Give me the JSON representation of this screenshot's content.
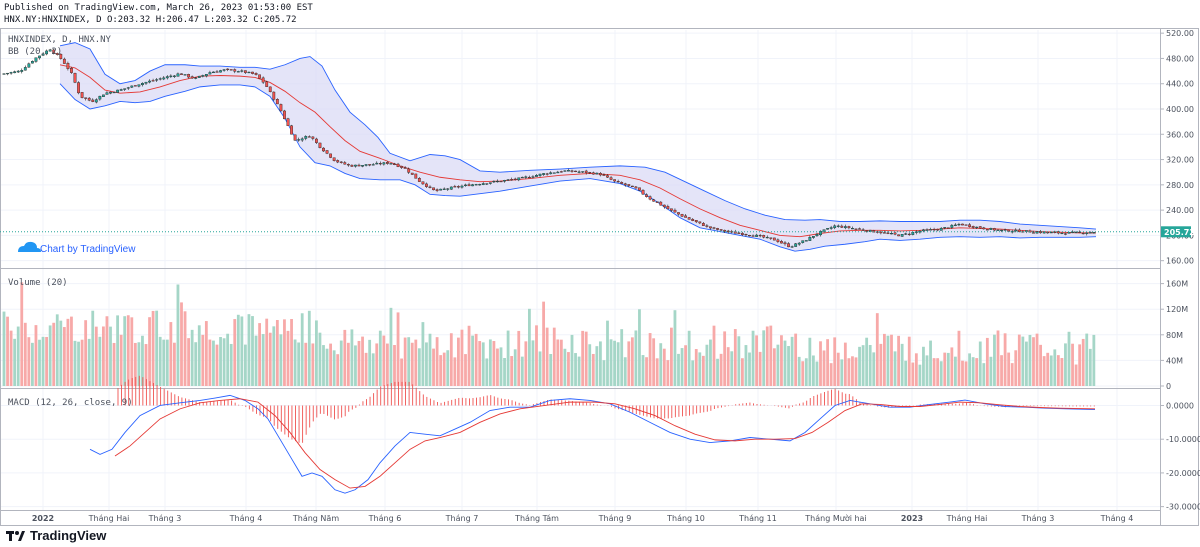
{
  "header": {
    "published": "Published on TradingView.com, March 26, 2023 01:53:00 EST",
    "ohlc": "HNX.NY:HNXINDEX, D O:203.32 H:206.47 L:203.32 C:205.72"
  },
  "chart_data": [
    {
      "type": "candlestick",
      "title": "HNXINDEX, D, HNX.NY",
      "indicator": "BB (20, 2)",
      "ylim": [
        150,
        525
      ],
      "yticks": [
        "520.00",
        "480.00",
        "440.00",
        "400.00",
        "360.00",
        "320.00",
        "280.00",
        "240.00",
        "200.00",
        "160.00"
      ],
      "ytick_values": [
        520,
        480,
        440,
        400,
        360,
        320,
        280,
        240,
        200,
        160
      ],
      "last_price": "205.72",
      "last_value": 205.72,
      "watermark": "Chart by TradingView",
      "close_path": [
        [
          0,
          455
        ],
        [
          20,
          460
        ],
        [
          35,
          480
        ],
        [
          50,
          495
        ],
        [
          62,
          478
        ],
        [
          72,
          455
        ],
        [
          80,
          420
        ],
        [
          92,
          412
        ],
        [
          105,
          425
        ],
        [
          120,
          430
        ],
        [
          140,
          440
        ],
        [
          165,
          450
        ],
        [
          180,
          456
        ],
        [
          195,
          448
        ],
        [
          210,
          458
        ],
        [
          225,
          462
        ],
        [
          240,
          460
        ],
        [
          255,
          455
        ],
        [
          265,
          440
        ],
        [
          280,
          400
        ],
        [
          295,
          350
        ],
        [
          310,
          358
        ],
        [
          320,
          340
        ],
        [
          335,
          318
        ],
        [
          350,
          310
        ],
        [
          370,
          312
        ],
        [
          390,
          315
        ],
        [
          405,
          306
        ],
        [
          420,
          285
        ],
        [
          435,
          270
        ],
        [
          450,
          275
        ],
        [
          470,
          280
        ],
        [
          495,
          285
        ],
        [
          520,
          290
        ],
        [
          545,
          298
        ],
        [
          565,
          302
        ],
        [
          585,
          300
        ],
        [
          600,
          297
        ],
        [
          615,
          285
        ],
        [
          635,
          275
        ],
        [
          650,
          258
        ],
        [
          670,
          240
        ],
        [
          690,
          225
        ],
        [
          710,
          212
        ],
        [
          730,
          205
        ],
        [
          755,
          200
        ],
        [
          775,
          193
        ],
        [
          790,
          182
        ],
        [
          805,
          192
        ],
        [
          820,
          205
        ],
        [
          835,
          215
        ],
        [
          850,
          212
        ],
        [
          865,
          208
        ],
        [
          880,
          205
        ],
        [
          900,
          200
        ],
        [
          920,
          207
        ],
        [
          940,
          210
        ],
        [
          960,
          218
        ],
        [
          980,
          212
        ],
        [
          1000,
          208
        ],
        [
          1020,
          207
        ],
        [
          1040,
          205
        ],
        [
          1060,
          204
        ],
        [
          1080,
          204
        ],
        [
          1096,
          205.72
        ]
      ],
      "bb_upper": [
        [
          60,
          500
        ],
        [
          75,
          505
        ],
        [
          90,
          495
        ],
        [
          105,
          455
        ],
        [
          120,
          440
        ],
        [
          135,
          445
        ],
        [
          150,
          460
        ],
        [
          165,
          470
        ],
        [
          185,
          470
        ],
        [
          200,
          468
        ],
        [
          220,
          468
        ],
        [
          240,
          466
        ],
        [
          255,
          466
        ],
        [
          270,
          463
        ],
        [
          285,
          470
        ],
        [
          300,
          480
        ],
        [
          310,
          483
        ],
        [
          322,
          468
        ],
        [
          335,
          430
        ],
        [
          350,
          395
        ],
        [
          365,
          375
        ],
        [
          378,
          355
        ],
        [
          390,
          330
        ],
        [
          410,
          318
        ],
        [
          430,
          328
        ],
        [
          445,
          326
        ],
        [
          460,
          320
        ],
        [
          480,
          302
        ],
        [
          500,
          300
        ],
        [
          530,
          303
        ],
        [
          560,
          305
        ],
        [
          590,
          308
        ],
        [
          620,
          310
        ],
        [
          645,
          308
        ],
        [
          665,
          300
        ],
        [
          685,
          285
        ],
        [
          705,
          270
        ],
        [
          725,
          255
        ],
        [
          745,
          242
        ],
        [
          765,
          232
        ],
        [
          785,
          225
        ],
        [
          805,
          224
        ],
        [
          820,
          225
        ],
        [
          840,
          222
        ],
        [
          860,
          222
        ],
        [
          880,
          223
        ],
        [
          900,
          222
        ],
        [
          920,
          222
        ],
        [
          940,
          222
        ],
        [
          960,
          224
        ],
        [
          980,
          224
        ],
        [
          1000,
          222
        ],
        [
          1020,
          218
        ],
        [
          1040,
          216
        ],
        [
          1060,
          214
        ],
        [
          1080,
          212
        ],
        [
          1096,
          210
        ]
      ],
      "bb_lower": [
        [
          60,
          440
        ],
        [
          75,
          415
        ],
        [
          90,
          400
        ],
        [
          105,
          405
        ],
        [
          120,
          412
        ],
        [
          135,
          410
        ],
        [
          150,
          412
        ],
        [
          165,
          420
        ],
        [
          185,
          428
        ],
        [
          200,
          435
        ],
        [
          220,
          438
        ],
        [
          240,
          438
        ],
        [
          255,
          435
        ],
        [
          270,
          420
        ],
        [
          285,
          385
        ],
        [
          300,
          340
        ],
        [
          315,
          315
        ],
        [
          330,
          310
        ],
        [
          345,
          298
        ],
        [
          360,
          290
        ],
        [
          380,
          288
        ],
        [
          400,
          288
        ],
        [
          415,
          280
        ],
        [
          430,
          265
        ],
        [
          445,
          263
        ],
        [
          460,
          262
        ],
        [
          480,
          266
        ],
        [
          500,
          270
        ],
        [
          530,
          278
        ],
        [
          560,
          286
        ],
        [
          590,
          290
        ],
        [
          620,
          282
        ],
        [
          640,
          270
        ],
        [
          660,
          250
        ],
        [
          680,
          228
        ],
        [
          700,
          212
        ],
        [
          720,
          206
        ],
        [
          740,
          200
        ],
        [
          760,
          194
        ],
        [
          780,
          182
        ],
        [
          795,
          175
        ],
        [
          810,
          178
        ],
        [
          825,
          183
        ],
        [
          845,
          186
        ],
        [
          865,
          190
        ],
        [
          880,
          194
        ],
        [
          900,
          192
        ],
        [
          920,
          194
        ],
        [
          940,
          197
        ],
        [
          960,
          198
        ],
        [
          980,
          197
        ],
        [
          1000,
          198
        ],
        [
          1020,
          196
        ],
        [
          1040,
          197
        ],
        [
          1060,
          197
        ],
        [
          1080,
          197
        ],
        [
          1096,
          198
        ]
      ],
      "bb_basis": [
        [
          60,
          470
        ],
        [
          75,
          465
        ],
        [
          90,
          450
        ],
        [
          105,
          430
        ],
        [
          120,
          425
        ],
        [
          140,
          427
        ],
        [
          160,
          435
        ],
        [
          180,
          445
        ],
        [
          200,
          452
        ],
        [
          220,
          453
        ],
        [
          240,
          452
        ],
        [
          255,
          450
        ],
        [
          270,
          442
        ],
        [
          285,
          428
        ],
        [
          300,
          410
        ],
        [
          315,
          395
        ],
        [
          330,
          372
        ],
        [
          345,
          350
        ],
        [
          360,
          333
        ],
        [
          380,
          322
        ],
        [
          400,
          310
        ],
        [
          420,
          300
        ],
        [
          440,
          292
        ],
        [
          460,
          288
        ],
        [
          480,
          285
        ],
        [
          500,
          286
        ],
        [
          530,
          290
        ],
        [
          560,
          295
        ],
        [
          590,
          298
        ],
        [
          620,
          295
        ],
        [
          640,
          288
        ],
        [
          660,
          275
        ],
        [
          680,
          258
        ],
        [
          700,
          242
        ],
        [
          720,
          228
        ],
        [
          740,
          216
        ],
        [
          760,
          208
        ],
        [
          780,
          200
        ],
        [
          800,
          198
        ],
        [
          820,
          203
        ],
        [
          840,
          207
        ],
        [
          860,
          208
        ],
        [
          880,
          208
        ],
        [
          900,
          207
        ],
        [
          920,
          208
        ],
        [
          940,
          210
        ],
        [
          960,
          212
        ],
        [
          980,
          211
        ],
        [
          1000,
          210
        ],
        [
          1020,
          208
        ],
        [
          1040,
          206
        ],
        [
          1060,
          205
        ],
        [
          1080,
          204
        ],
        [
          1096,
          204
        ]
      ]
    },
    {
      "type": "bar",
      "title": "Volume (20)",
      "ylim": [
        0,
        175
      ],
      "yticks": [
        "160M",
        "120M",
        "80M",
        "40M",
        "0"
      ],
      "ytick_values": [
        160,
        120,
        80,
        40,
        0
      ],
      "note": "series of daily volume bars, red for down days and green for up days"
    },
    {
      "type": "line",
      "title": "MACD (12, 26, close, 9)",
      "ylim": [
        -31,
        4
      ],
      "yticks": [
        "0.0000",
        "-10.0000",
        "-20.0000",
        "-30.0000"
      ],
      "ytick_values": [
        0,
        -10,
        -20,
        -30
      ],
      "macd": [
        [
          90,
          -13
        ],
        [
          100,
          -14.5
        ],
        [
          112,
          -13
        ],
        [
          125,
          -8
        ],
        [
          140,
          -3
        ],
        [
          160,
          0
        ],
        [
          180,
          0.8
        ],
        [
          200,
          1.5
        ],
        [
          215,
          2.2
        ],
        [
          230,
          3
        ],
        [
          245,
          1.5
        ],
        [
          258,
          -1
        ],
        [
          268,
          -4
        ],
        [
          280,
          -10
        ],
        [
          292,
          -16
        ],
        [
          302,
          -21
        ],
        [
          312,
          -20
        ],
        [
          322,
          -21
        ],
        [
          335,
          -25
        ],
        [
          345,
          -26
        ],
        [
          355,
          -25
        ],
        [
          368,
          -22
        ],
        [
          380,
          -17
        ],
        [
          395,
          -12
        ],
        [
          410,
          -8
        ],
        [
          425,
          -8.5
        ],
        [
          440,
          -9
        ],
        [
          455,
          -7
        ],
        [
          470,
          -5
        ],
        [
          490,
          -1.5
        ],
        [
          510,
          -0.5
        ],
        [
          530,
          -0.5
        ],
        [
          550,
          1.5
        ],
        [
          570,
          2
        ],
        [
          590,
          1.5
        ],
        [
          610,
          0.5
        ],
        [
          630,
          -2
        ],
        [
          650,
          -5
        ],
        [
          670,
          -8
        ],
        [
          690,
          -10
        ],
        [
          710,
          -11
        ],
        [
          730,
          -10.5
        ],
        [
          750,
          -9.5
        ],
        [
          770,
          -10
        ],
        [
          790,
          -10.5
        ],
        [
          805,
          -8
        ],
        [
          820,
          -4
        ],
        [
          835,
          0
        ],
        [
          850,
          1.5
        ],
        [
          870,
          0.5
        ],
        [
          890,
          -0.5
        ],
        [
          910,
          -0.5
        ],
        [
          930,
          0.3
        ],
        [
          950,
          1
        ],
        [
          965,
          1.6
        ],
        [
          985,
          0.5
        ],
        [
          1005,
          -0.3
        ],
        [
          1025,
          -0.5
        ],
        [
          1045,
          -0.8
        ],
        [
          1065,
          -1
        ],
        [
          1095,
          -1.2
        ]
      ],
      "signal": [
        [
          115,
          -15
        ],
        [
          130,
          -12
        ],
        [
          145,
          -8
        ],
        [
          160,
          -4
        ],
        [
          180,
          -1
        ],
        [
          200,
          0.8
        ],
        [
          220,
          1.5
        ],
        [
          240,
          2
        ],
        [
          258,
          1
        ],
        [
          275,
          -3
        ],
        [
          290,
          -8
        ],
        [
          305,
          -14
        ],
        [
          320,
          -19
        ],
        [
          335,
          -22
        ],
        [
          350,
          -24.5
        ],
        [
          365,
          -24
        ],
        [
          380,
          -21
        ],
        [
          395,
          -17
        ],
        [
          410,
          -13
        ],
        [
          425,
          -10.5
        ],
        [
          440,
          -9.5
        ],
        [
          460,
          -8
        ],
        [
          480,
          -5
        ],
        [
          500,
          -2.5
        ],
        [
          520,
          -1
        ],
        [
          545,
          0
        ],
        [
          570,
          1
        ],
        [
          595,
          1
        ],
        [
          615,
          0.5
        ],
        [
          635,
          -1
        ],
        [
          655,
          -3
        ],
        [
          675,
          -6
        ],
        [
          695,
          -8.5
        ],
        [
          715,
          -10.2
        ],
        [
          735,
          -10.5
        ],
        [
          755,
          -10
        ],
        [
          775,
          -10
        ],
        [
          795,
          -9.8
        ],
        [
          812,
          -8
        ],
        [
          828,
          -5
        ],
        [
          845,
          -1.5
        ],
        [
          862,
          0.5
        ],
        [
          880,
          0.3
        ],
        [
          900,
          -0.3
        ],
        [
          920,
          -0.3
        ],
        [
          940,
          0.3
        ],
        [
          960,
          1
        ],
        [
          980,
          0.8
        ],
        [
          1000,
          0.2
        ],
        [
          1020,
          -0.3
        ],
        [
          1040,
          -0.6
        ],
        [
          1060,
          -0.8
        ],
        [
          1095,
          -1
        ]
      ]
    }
  ],
  "xaxis": {
    "labels": [
      "2022",
      "Tháng Hai",
      "Tháng 3",
      "Tháng 4",
      "Tháng Năm",
      "Tháng 6",
      "Tháng 7",
      "Tháng Tám",
      "Tháng 9",
      "Tháng 10",
      "Tháng 11",
      "Tháng Mười hai",
      "2023",
      "Tháng Hai",
      "Tháng 3",
      "Tháng 4"
    ],
    "positions": [
      43,
      109,
      165,
      246,
      316,
      385,
      462,
      537,
      615,
      686,
      758,
      836,
      912,
      967,
      1038,
      1117
    ]
  },
  "footer": {
    "logo_text": "TradingView"
  },
  "colors": {
    "up": "#26a69a",
    "down": "#ef5350",
    "bb_line": "#2962ff",
    "bb_fill": "#d9d9f5",
    "basis": "#e53935",
    "macd": "#2962ff",
    "signal": "#e53935",
    "grid": "#f0f3fa",
    "axis_bg": "#ffffff",
    "price_tag": "#26a69a"
  }
}
